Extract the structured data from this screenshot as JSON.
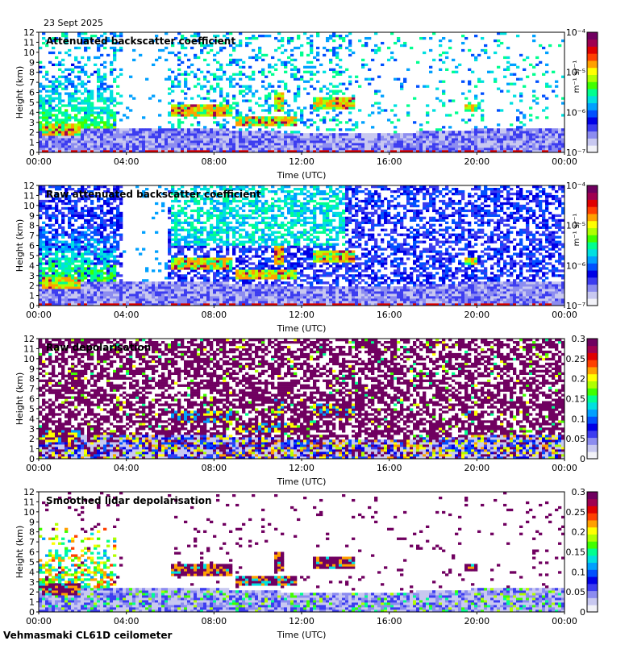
{
  "page": {
    "date": "23 Sept 2025",
    "footer": "Vehmasmaki CL61D ceilometer"
  },
  "colors": {
    "background": "#ffffff",
    "frame": "#000000",
    "colormap": [
      "#f2f2f8",
      "#c8c8f0",
      "#8c8cf0",
      "#3c3cf0",
      "#0000e6",
      "#0050ff",
      "#00a0ff",
      "#00e0e0",
      "#00ff90",
      "#40ff00",
      "#b0ff00",
      "#ffff00",
      "#ffa000",
      "#ff4000",
      "#e00000",
      "#a00050",
      "#700060"
    ]
  },
  "chart_data": [
    {
      "type": "heatmap",
      "title": "Attenuated backscatter coefficient",
      "xlabel": "Time (UTC)",
      "ylabel": "Height (km)",
      "xticks": [
        "00:00",
        "04:00",
        "08:00",
        "12:00",
        "16:00",
        "20:00",
        "00:00"
      ],
      "yticks": [
        "0",
        "1",
        "2",
        "3",
        "4",
        "5",
        "6",
        "7",
        "8",
        "9",
        "10",
        "11",
        "12"
      ],
      "ylim": [
        0,
        12
      ],
      "xlim_hours": [
        0,
        24
      ],
      "colorbar": {
        "scale": "log",
        "ticks": [
          "10⁻⁷",
          "10⁻⁶",
          "10⁻⁵",
          "10⁻⁴"
        ],
        "unit": "m⁻¹ sr⁻¹"
      },
      "variant": "smoothed-backscatter"
    },
    {
      "type": "heatmap",
      "title": "Raw attenuated backscatter coefficient",
      "xlabel": "Time (UTC)",
      "ylabel": "Height (km)",
      "xticks": [
        "00:00",
        "04:00",
        "08:00",
        "12:00",
        "16:00",
        "20:00",
        "00:00"
      ],
      "yticks": [
        "0",
        "1",
        "2",
        "3",
        "4",
        "5",
        "6",
        "7",
        "8",
        "9",
        "10",
        "11",
        "12"
      ],
      "ylim": [
        0,
        12
      ],
      "xlim_hours": [
        0,
        24
      ],
      "colorbar": {
        "scale": "log",
        "ticks": [
          "10⁻⁷",
          "10⁻⁶",
          "10⁻⁵",
          "10⁻⁴"
        ],
        "unit": "m⁻¹ sr⁻¹"
      },
      "variant": "raw-backscatter"
    },
    {
      "type": "heatmap",
      "title": "Raw depolarisation",
      "xlabel": "Time (UTC)",
      "ylabel": "Height (km)",
      "xticks": [
        "00:00",
        "04:00",
        "08:00",
        "12:00",
        "16:00",
        "20:00",
        "00:00"
      ],
      "yticks": [
        "0",
        "1",
        "2",
        "3",
        "4",
        "5",
        "6",
        "7",
        "8",
        "9",
        "10",
        "11",
        "12"
      ],
      "ylim": [
        0,
        12
      ],
      "xlim_hours": [
        0,
        24
      ],
      "colorbar": {
        "scale": "linear",
        "ticks": [
          "0",
          "0.05",
          "0.1",
          "0.15",
          "0.2",
          "0.25",
          "0.3"
        ],
        "range": [
          0,
          0.3
        ],
        "unit": ""
      },
      "variant": "raw-depol"
    },
    {
      "type": "heatmap",
      "title": "Smoothed lidar depolarisation",
      "xlabel": "Time (UTC)",
      "ylabel": "Height (km)",
      "xticks": [
        "00:00",
        "04:00",
        "08:00",
        "12:00",
        "16:00",
        "20:00",
        "00:00"
      ],
      "yticks": [
        "0",
        "1",
        "2",
        "3",
        "4",
        "5",
        "6",
        "7",
        "8",
        "9",
        "10",
        "11",
        "12"
      ],
      "ylim": [
        0,
        12
      ],
      "xlim_hours": [
        0,
        24
      ],
      "colorbar": {
        "scale": "linear",
        "ticks": [
          "0",
          "0.05",
          "0.1",
          "0.15",
          "0.2",
          "0.25",
          "0.3"
        ],
        "range": [
          0,
          0.3
        ],
        "unit": ""
      },
      "variant": "smoothed-depol"
    }
  ],
  "features": {
    "cloud_layers": [
      {
        "t0": 6.0,
        "t1": 8.8,
        "h0": 3.6,
        "h1": 4.8
      },
      {
        "t0": 9.0,
        "t1": 11.8,
        "h0": 2.6,
        "h1": 3.6
      },
      {
        "t0": 10.8,
        "t1": 11.2,
        "h0": 4.0,
        "h1": 6.0
      },
      {
        "t0": 12.5,
        "t1": 14.4,
        "h0": 4.3,
        "h1": 5.6
      },
      {
        "t0": 0.2,
        "t1": 1.9,
        "h0": 1.6,
        "h1": 2.8
      },
      {
        "t0": 19.4,
        "t1": 20.0,
        "h0": 4.0,
        "h1": 4.8
      }
    ],
    "boundary_layer_top_km": 2.2,
    "gap_hours": [
      3.9,
      5.9
    ]
  }
}
